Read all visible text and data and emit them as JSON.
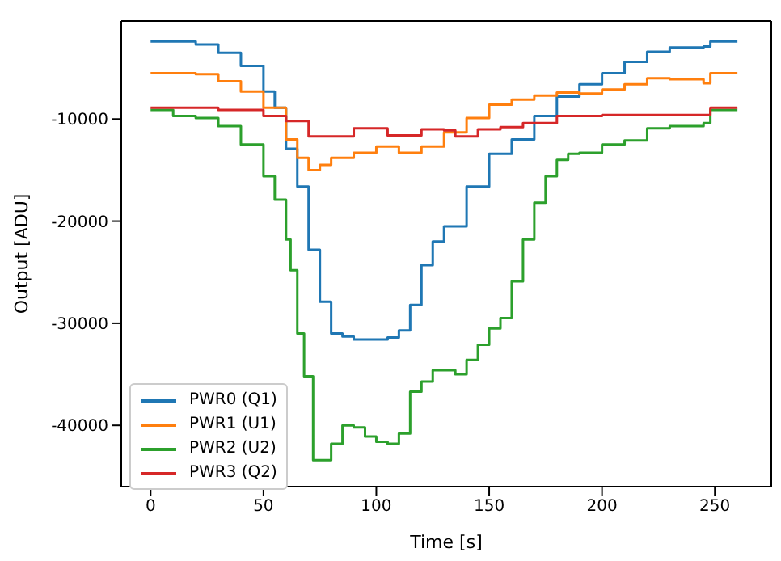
{
  "chart_data": {
    "type": "step",
    "xlabel": "Time [s]",
    "ylabel": "Output [ADU]",
    "xlim": [
      -13,
      275
    ],
    "xticks": [
      0,
      50,
      100,
      150,
      200,
      250
    ],
    "ylim": [
      -46000,
      -400
    ],
    "yticks": [
      -40000,
      -30000,
      -20000,
      -10000
    ],
    "legend": "bottom left",
    "series": [
      {
        "name": "PWR0 (Q1)",
        "color": "#1f77b4",
        "x": [
          0,
          20,
          30,
          40,
          50,
          55,
          60,
          65,
          70,
          75,
          80,
          85,
          90,
          100,
          105,
          110,
          115,
          120,
          125,
          130,
          140,
          150,
          160,
          170,
          180,
          190,
          200,
          210,
          220,
          230,
          240,
          245,
          248,
          260
        ],
        "values": [
          -2400,
          -2700,
          -3500,
          -4800,
          -7300,
          -8900,
          -12900,
          -16600,
          -22800,
          -27900,
          -31000,
          -31300,
          -31600,
          -31600,
          -31400,
          -30700,
          -28200,
          -24300,
          -22000,
          -20500,
          -16600,
          -13400,
          -12000,
          -9700,
          -7800,
          -6600,
          -5500,
          -4400,
          -3400,
          -3000,
          -3000,
          -2900,
          -2400,
          -2400
        ]
      },
      {
        "name": "PWR1 (U1)",
        "color": "#ff7f0e",
        "x": [
          0,
          20,
          30,
          40,
          50,
          60,
          65,
          70,
          75,
          80,
          90,
          100,
          110,
          120,
          130,
          140,
          150,
          160,
          170,
          180,
          190,
          200,
          210,
          220,
          230,
          245,
          248,
          260
        ],
        "values": [
          -5500,
          -5600,
          -6300,
          -7300,
          -8900,
          -12000,
          -13800,
          -15000,
          -14500,
          -13800,
          -13300,
          -12700,
          -13300,
          -12700,
          -11300,
          -9900,
          -8600,
          -8100,
          -7700,
          -7400,
          -7500,
          -7100,
          -6600,
          -6000,
          -6100,
          -6500,
          -5500,
          -5500
        ]
      },
      {
        "name": "PWR2 (U2)",
        "color": "#2ca02c",
        "x": [
          0,
          10,
          20,
          30,
          40,
          50,
          55,
          60,
          62,
          65,
          68,
          72,
          76,
          80,
          85,
          90,
          95,
          100,
          105,
          110,
          115,
          120,
          125,
          130,
          135,
          140,
          145,
          150,
          155,
          160,
          165,
          170,
          175,
          180,
          185,
          190,
          200,
          210,
          220,
          230,
          245,
          248,
          260
        ],
        "values": [
          -9100,
          -9700,
          -9900,
          -10700,
          -12500,
          -15600,
          -17900,
          -21800,
          -24800,
          -31000,
          -35200,
          -43400,
          -43400,
          -41800,
          -40000,
          -40200,
          -41100,
          -41600,
          -41800,
          -40800,
          -36700,
          -35700,
          -34600,
          -34600,
          -35000,
          -33600,
          -32100,
          -30500,
          -29500,
          -25900,
          -21800,
          -18200,
          -15600,
          -14000,
          -13400,
          -13300,
          -12500,
          -12100,
          -10900,
          -10700,
          -10400,
          -9100,
          -9100
        ]
      },
      {
        "name": "PWR3 (Q2)",
        "color": "#d62728",
        "x": [
          0,
          30,
          50,
          60,
          70,
          75,
          90,
          105,
          120,
          130,
          135,
          145,
          155,
          165,
          180,
          200,
          220,
          245,
          248,
          260
        ],
        "values": [
          -8900,
          -9100,
          -9700,
          -10200,
          -11700,
          -11700,
          -10900,
          -11600,
          -11000,
          -11100,
          -11700,
          -11000,
          -10800,
          -10400,
          -9700,
          -9600,
          -9600,
          -9600,
          -8900,
          -8900
        ]
      }
    ]
  }
}
